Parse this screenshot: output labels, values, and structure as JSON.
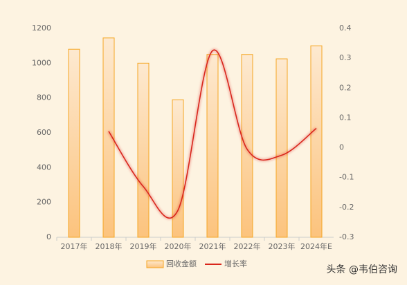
{
  "chart_data": {
    "type": "bar",
    "categories": [
      "2017年",
      "2018年",
      "2019年",
      "2020年",
      "2021年",
      "2022年",
      "2023年",
      "2024年E"
    ],
    "series": [
      {
        "name": "回收金额",
        "type": "bar",
        "color": "#f5a623",
        "values": [
          1080,
          1145,
          1000,
          790,
          1050,
          1050,
          1025,
          1100
        ]
      },
      {
        "name": "增长率",
        "type": "line",
        "axis": "y2",
        "color": "#d9261c",
        "values": [
          null,
          0.055,
          -0.13,
          -0.21,
          0.325,
          -0.005,
          -0.025,
          0.065
        ]
      }
    ],
    "ylim": [
      0,
      1200
    ],
    "yticks": [
      0,
      200,
      400,
      600,
      800,
      1000,
      1200
    ],
    "y2lim": [
      -0.3,
      0.4
    ],
    "y2ticks": [
      -0.3,
      -0.2,
      -0.1,
      0,
      0.1,
      0.2,
      0.3,
      0.4
    ],
    "legend": "bottom",
    "watermark": "头条 @韦伯咨询"
  }
}
